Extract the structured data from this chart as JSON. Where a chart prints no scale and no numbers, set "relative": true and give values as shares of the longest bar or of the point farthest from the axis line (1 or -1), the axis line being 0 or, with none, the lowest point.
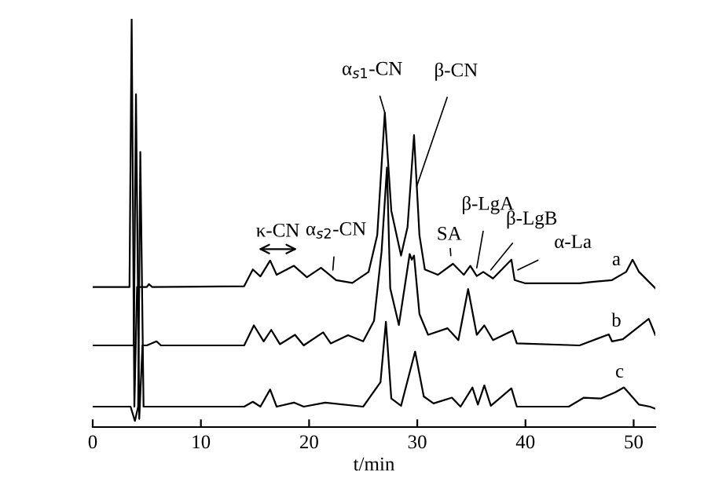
{
  "chart_data": {
    "type": "line",
    "relative": true,
    "xlabel": "t/min",
    "xlim": [
      0,
      52
    ],
    "xticks": [
      0,
      10,
      20,
      30,
      40,
      50
    ],
    "tick_labels": "x",
    "series": [
      {
        "name": "a",
        "color": "#000000",
        "x": [
          0,
          3.4,
          3.6,
          3.85,
          4.1,
          5,
          5.2,
          5.5,
          14,
          14.8,
          15.5,
          16.4,
          17,
          18.6,
          19.8,
          21.1,
          22.5,
          24,
          25.5,
          26.3,
          27.0,
          27.6,
          28.5,
          29.1,
          29.7,
          30.2,
          30.7,
          31.9,
          33.3,
          34.3,
          34.9,
          35.5,
          36.1,
          37.0,
          38.7,
          39.0,
          40,
          45,
          46,
          48,
          49.3,
          49.9,
          50.5,
          52
        ],
        "values": [
          0.343,
          0.343,
          1.0,
          0.05,
          0.343,
          0.343,
          0.35,
          0.343,
          0.345,
          0.386,
          0.369,
          0.408,
          0.373,
          0.395,
          0.367,
          0.39,
          0.36,
          0.353,
          0.38,
          0.47,
          0.77,
          0.53,
          0.42,
          0.49,
          0.715,
          0.47,
          0.386,
          0.373,
          0.4,
          0.373,
          0.395,
          0.37,
          0.38,
          0.364,
          0.41,
          0.36,
          0.352,
          0.352,
          0.355,
          0.36,
          0.38,
          0.41,
          0.38,
          0.34
        ]
      },
      {
        "name": "b",
        "color": "#000000",
        "x": [
          0,
          3.8,
          4.0,
          4.3,
          4.6,
          5,
          5.9,
          6.3,
          14,
          14.9,
          15.8,
          16.5,
          17.3,
          18.7,
          19.5,
          21.3,
          22,
          23.6,
          25,
          26,
          26.7,
          27.2,
          27.5,
          28.3,
          29.3,
          29.5,
          29.7,
          30.2,
          31,
          32.8,
          33.8,
          34.7,
          35.5,
          36.2,
          37,
          38.8,
          39.2,
          45,
          47.7,
          48,
          49,
          51.4,
          52
        ],
        "values": [
          0.2,
          0.2,
          0.815,
          0.02,
          0.2,
          0.2,
          0.21,
          0.2,
          0.2,
          0.249,
          0.21,
          0.238,
          0.203,
          0.226,
          0.2,
          0.232,
          0.205,
          0.225,
          0.21,
          0.26,
          0.43,
          0.636,
          0.34,
          0.25,
          0.424,
          0.41,
          0.42,
          0.277,
          0.226,
          0.242,
          0.213,
          0.338,
          0.226,
          0.249,
          0.213,
          0.236,
          0.205,
          0.2,
          0.227,
          0.21,
          0.215,
          0.265,
          0.226
        ]
      },
      {
        "name": "c",
        "color": "#000000",
        "x": [
          0,
          3.5,
          3.9,
          4.2,
          4.4,
          4.7,
          5,
          14,
          14.8,
          15.5,
          16.4,
          17,
          18.6,
          19.5,
          21.5,
          25,
          26.6,
          27.1,
          27.6,
          28.5,
          29.8,
          30.6,
          31.5,
          33.2,
          34,
          35.1,
          35.6,
          36.2,
          36.8,
          38.7,
          39.2,
          44,
          45.4,
          47,
          48.3,
          49.1,
          50.5,
          51.5,
          52
        ],
        "values": [
          0.05,
          0.05,
          0.015,
          0.05,
          0.674,
          0.05,
          0.05,
          0.05,
          0.062,
          0.05,
          0.092,
          0.05,
          0.06,
          0.05,
          0.06,
          0.05,
          0.11,
          0.258,
          0.07,
          0.052,
          0.185,
          0.075,
          0.058,
          0.072,
          0.05,
          0.097,
          0.055,
          0.102,
          0.052,
          0.095,
          0.05,
          0.05,
          0.072,
          0.07,
          0.085,
          0.097,
          0.055,
          0.05,
          0.045
        ]
      }
    ],
    "annotations": [
      {
        "text": "α$_{s1}$-CN",
        "x": 27.0,
        "y": 0.77
      },
      {
        "text": "β-CN",
        "x": 29.95,
        "y": 0.59
      },
      "κ-CN",
      {
        "text": "α$_{s2}$-CN",
        "x": 22.2,
        "y": 0.385
      },
      {
        "text": "SA",
        "x": 33.1,
        "y": 0.42
      },
      {
        "text": "β-LgA",
        "x": 35.5,
        "y": 0.39
      },
      {
        "text": "β-LgB",
        "x": 36.8,
        "y": 0.385
      },
      {
        "text": "α-La",
        "x": 39.3,
        "y": 0.385
      }
    ]
  }
}
